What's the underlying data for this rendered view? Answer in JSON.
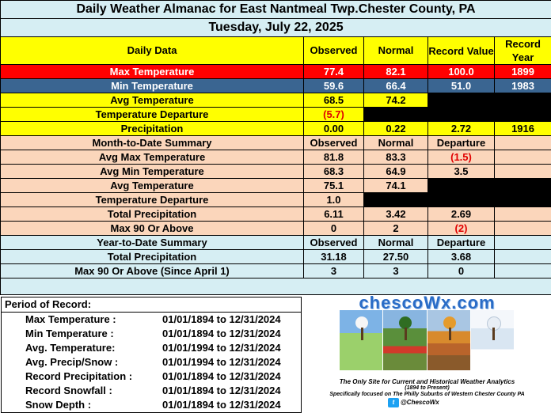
{
  "title": "Daily Weather Almanac for East Nantmeal Twp.Chester County, PA",
  "date": "Tuesday, July 22, 2025",
  "header": {
    "col1": "Daily Data",
    "col2": "Observed",
    "col3": "Normal",
    "col4": "Record Value",
    "col5": "Record Year"
  },
  "daily": [
    {
      "label": "Max Temperature",
      "observed": "77.4",
      "normal": "82.1",
      "record": "100.0",
      "year": "1899"
    },
    {
      "label": "Min Temperature",
      "observed": "59.6",
      "normal": "66.4",
      "record": "51.0",
      "year": "1983"
    },
    {
      "label": "Avg Temperature",
      "observed": "68.5",
      "normal": "74.2"
    },
    {
      "label": "Temperature Departure",
      "observed": "(5.7)"
    },
    {
      "label": "Precipitation",
      "observed": "0.00",
      "normal": "0.22",
      "record": "2.72",
      "year": "1916"
    }
  ],
  "mtd": {
    "title": "Month-to-Date Summary",
    "col2": "Observed",
    "col3": "Normal",
    "col4": "Departure",
    "rows": [
      {
        "label": "Avg Max Temperature",
        "observed": "81.8",
        "normal": "83.3",
        "departure": "(1.5)"
      },
      {
        "label": "Avg Min Temperature",
        "observed": "68.3",
        "normal": "64.9",
        "departure": "3.5"
      },
      {
        "label": "Avg Temperature",
        "observed": "75.1",
        "normal": "74.1"
      },
      {
        "label": "Temperature Departure",
        "observed": "1.0"
      },
      {
        "label": "Total Precipitation",
        "observed": "6.11",
        "normal": "3.42",
        "departure": "2.69"
      },
      {
        "label": "Max 90 Or Above",
        "observed": "0",
        "normal": "2",
        "departure": "(2)"
      }
    ]
  },
  "ytd": {
    "title": "Year-to-Date Summary",
    "col2": "Observed",
    "col3": "Normal",
    "col4": "Departure",
    "rows": [
      {
        "label": "Total Precipitation",
        "observed": "31.18",
        "normal": "27.50",
        "departure": "3.68"
      },
      {
        "label": "Max 90 Or Above (Since April 1)",
        "observed": "3",
        "normal": "3",
        "departure": "0"
      }
    ]
  },
  "period": {
    "title": "Period of Record:",
    "rows": [
      {
        "label": "Max Temperature :",
        "range": "01/01/1894 to 12/31/2024"
      },
      {
        "label": "Min Temperature :",
        "range": "01/01/1894 to 12/31/2024"
      },
      {
        "label": "Avg. Temperature:",
        "range": "01/01/1994 to 12/31/2024"
      },
      {
        "label": "Avg. Precip/Snow :",
        "range": "01/01/1994 to 12/31/2024"
      },
      {
        "label": "Record Precipitation :",
        "range": "01/01/1894 to 12/31/2024"
      },
      {
        "label": "Record Snowfall :",
        "range": "01/01/1894 to 12/31/2024"
      },
      {
        "label": "Snow Depth :",
        "range": "01/01/1894 to 12/31/2024"
      }
    ]
  },
  "logo": {
    "brand": "chescoWx.com",
    "tagline": "The Only Site for Current and Historical Weather Analytics",
    "years": "(1894 to Present)",
    "focus": "Specifically focused on The Philly Suburbs of Western Chester County PA",
    "twitter": "@ChescoWx"
  },
  "colors": {
    "title_bg": "#d6eef3",
    "header_bg": "#ffff00",
    "max_row": "#ff0000",
    "min_row": "#3a6591",
    "summary_bg": "#fbd6bb",
    "negative": "#e00000"
  }
}
